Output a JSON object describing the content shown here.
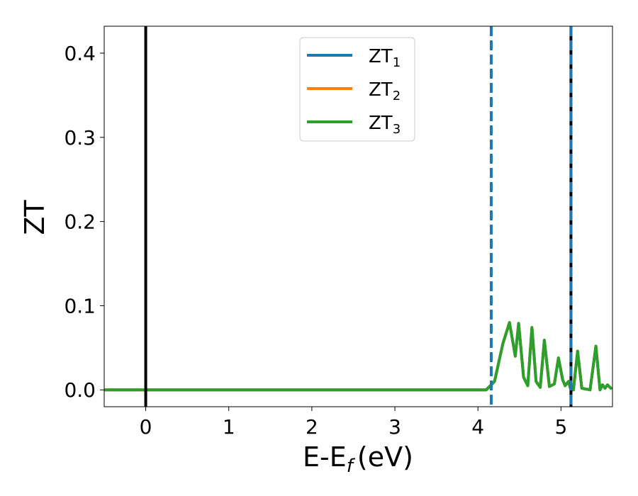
{
  "chart_data": {
    "type": "line",
    "title": "",
    "xlabel": "E-E",
    "xlabel_sub": "f",
    "xlabel_unit": "(eV)",
    "ylabel": "ZT",
    "xlim": [
      -0.5,
      5.62
    ],
    "ylim": [
      -0.02,
      0.432
    ],
    "xticks": [
      0,
      1,
      2,
      3,
      4,
      5
    ],
    "xtick_labels": [
      "0",
      "1",
      "2",
      "3",
      "4",
      "5"
    ],
    "yticks": [
      0.0,
      0.1,
      0.2,
      0.3,
      0.4
    ],
    "ytick_labels": [
      "0.0",
      "0.1",
      "0.2",
      "0.3",
      "0.4"
    ],
    "grid": false,
    "legend": "upper-center",
    "vlines": [
      {
        "x": 0.0,
        "style": "solid",
        "color": "#000000"
      },
      {
        "x": 4.16,
        "style": "dashed",
        "color": "#1f77b4"
      },
      {
        "x": 5.12,
        "style": "solid",
        "color": "#000000"
      },
      {
        "x": 5.12,
        "style": "dashed",
        "color": "#1f77b4"
      }
    ],
    "series": [
      {
        "name": "ZT",
        "sub": "1",
        "color": "#1f77b4",
        "x": [
          -0.5,
          4.1,
          4.2,
          4.3,
          4.38,
          4.45,
          4.49,
          4.55,
          4.6,
          4.65,
          4.7,
          4.75,
          4.8,
          4.86,
          4.92,
          4.97,
          5.02,
          5.05,
          5.09,
          5.12,
          5.15,
          5.2,
          5.25,
          5.35,
          5.42,
          5.47,
          5.5,
          5.53,
          5.56,
          5.6
        ],
        "y": [
          0.0,
          0.0,
          0.01,
          0.055,
          0.08,
          0.04,
          0.079,
          0.015,
          0.005,
          0.074,
          0.01,
          0.003,
          0.059,
          0.004,
          0.007,
          0.038,
          0.012,
          0.005,
          0.01,
          0.0,
          0.0,
          0.046,
          0.002,
          0.0,
          0.052,
          0.0,
          0.006,
          0.002,
          0.006,
          0.002
        ]
      },
      {
        "name": "ZT",
        "sub": "2",
        "color": "#ff7f0e",
        "x": [
          -0.5,
          4.1,
          4.2,
          4.3,
          4.38,
          4.45,
          4.49,
          4.55,
          4.6,
          4.65,
          4.7,
          4.75,
          4.8,
          4.86,
          4.92,
          4.97,
          5.02,
          5.05,
          5.09,
          5.12,
          5.15,
          5.2,
          5.25,
          5.35,
          5.42,
          5.47,
          5.5,
          5.53,
          5.56,
          5.6
        ],
        "y": [
          0.0,
          0.0,
          0.01,
          0.055,
          0.08,
          0.04,
          0.079,
          0.015,
          0.005,
          0.074,
          0.01,
          0.003,
          0.059,
          0.004,
          0.007,
          0.038,
          0.012,
          0.005,
          0.01,
          0.0,
          0.0,
          0.046,
          0.002,
          0.0,
          0.052,
          0.0,
          0.006,
          0.002,
          0.006,
          0.002
        ]
      },
      {
        "name": "ZT",
        "sub": "3",
        "color": "#2ca02c",
        "x": [
          -0.5,
          4.1,
          4.2,
          4.3,
          4.38,
          4.45,
          4.49,
          4.55,
          4.6,
          4.65,
          4.7,
          4.75,
          4.8,
          4.86,
          4.92,
          4.97,
          5.02,
          5.05,
          5.09,
          5.12,
          5.15,
          5.2,
          5.25,
          5.35,
          5.42,
          5.47,
          5.5,
          5.53,
          5.56,
          5.6
        ],
        "y": [
          0.0,
          0.0,
          0.01,
          0.055,
          0.08,
          0.04,
          0.079,
          0.015,
          0.005,
          0.074,
          0.01,
          0.003,
          0.059,
          0.004,
          0.007,
          0.038,
          0.012,
          0.005,
          0.01,
          0.0,
          0.0,
          0.046,
          0.002,
          0.0,
          0.052,
          0.0,
          0.006,
          0.002,
          0.006,
          0.002
        ]
      }
    ]
  }
}
